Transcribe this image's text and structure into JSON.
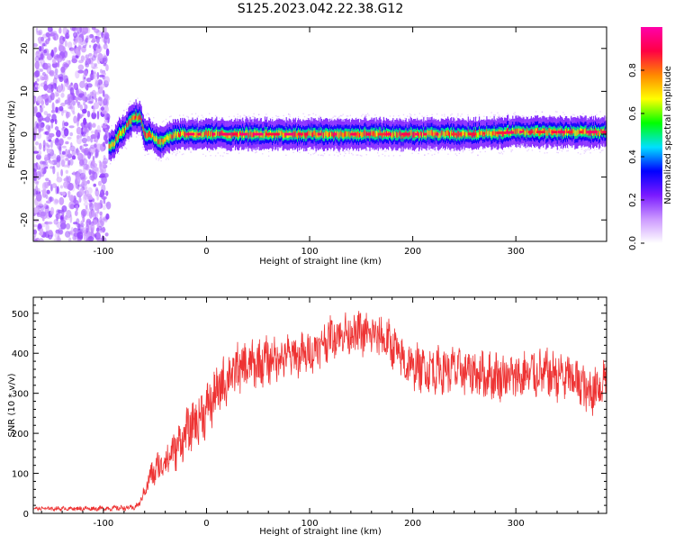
{
  "title": "S125.2023.042.22.38.G12",
  "colors": {
    "snr_line": "#ee3333",
    "axis": "#000000",
    "background": "#ffffff"
  },
  "chart_data": [
    {
      "type": "heatmap",
      "xlabel": "Height of straight line (km)",
      "ylabel": "Frequency (Hz)",
      "xlim": [
        -168,
        388
      ],
      "ylim": [
        -25,
        25
      ],
      "xticks": [
        -100,
        0,
        100,
        200,
        300
      ],
      "yticks": [
        -20,
        -10,
        0,
        10,
        20
      ],
      "grid": false,
      "colorbar": {
        "label": "Normalized spectral amplitude",
        "range": [
          0.0,
          1.0
        ],
        "ticks": [
          0.0,
          0.2,
          0.4,
          0.6,
          0.8
        ],
        "colormap": [
          "#ffffff",
          "#cc99ff",
          "#7a1aff",
          "#0000ff",
          "#00e0ff",
          "#00ff00",
          "#ffff00",
          "#ff8800",
          "#ff0044",
          "#ff00aa"
        ]
      },
      "noise_region_x": [
        -168,
        -95
      ],
      "ridge_center_hz": [
        [
          -95,
          -3
        ],
        [
          -90,
          -2
        ],
        [
          -85,
          0
        ],
        [
          -80,
          1
        ],
        [
          -75,
          3
        ],
        [
          -70,
          4
        ],
        [
          -65,
          4
        ],
        [
          -60,
          0
        ],
        [
          -55,
          0
        ],
        [
          -50,
          -1
        ],
        [
          -45,
          -2
        ],
        [
          -40,
          -1
        ],
        [
          -30,
          0
        ],
        [
          -20,
          0
        ],
        [
          0,
          0
        ],
        [
          100,
          0
        ],
        [
          200,
          0
        ],
        [
          250,
          0
        ],
        [
          300,
          0.5
        ],
        [
          388,
          0.5
        ]
      ],
      "ridge_peak_amplitude": 0.9
    },
    {
      "type": "line",
      "xlabel": "Height of straight line (km)",
      "ylabel": "SNR (10 * v/v)",
      "xlim": [
        -168,
        388
      ],
      "ylim": [
        0,
        540
      ],
      "xticks": [
        -100,
        0,
        100,
        200,
        300
      ],
      "yticks": [
        0,
        100,
        200,
        300,
        400,
        500
      ],
      "grid": false,
      "series": [
        {
          "envelope": [
            [
              -168,
              12
            ],
            [
              -110,
              12
            ],
            [
              -70,
              14
            ],
            [
              -65,
              25
            ],
            [
              -60,
              55
            ],
            [
              -55,
              90
            ],
            [
              -45,
              120
            ],
            [
              -30,
              160
            ],
            [
              -20,
              200
            ],
            [
              -10,
              230
            ],
            [
              0,
              260
            ],
            [
              10,
              300
            ],
            [
              20,
              340
            ],
            [
              30,
              360
            ],
            [
              50,
              375
            ],
            [
              70,
              390
            ],
            [
              90,
              395
            ],
            [
              100,
              400
            ],
            [
              110,
              420
            ],
            [
              120,
              440
            ],
            [
              130,
              450
            ],
            [
              150,
              450
            ],
            [
              170,
              440
            ],
            [
              180,
              420
            ],
            [
              190,
              380
            ],
            [
              200,
              365
            ],
            [
              220,
              360
            ],
            [
              250,
              355
            ],
            [
              270,
              345
            ],
            [
              300,
              340
            ],
            [
              320,
              350
            ],
            [
              340,
              345
            ],
            [
              360,
              330
            ],
            [
              370,
              300
            ],
            [
              380,
              320
            ],
            [
              388,
              340
            ]
          ],
          "noise_amplitude": [
            [
              -168,
              4
            ],
            [
              -65,
              6
            ],
            [
              -50,
              35
            ],
            [
              0,
              60
            ],
            [
              100,
              45
            ],
            [
              200,
              50
            ],
            [
              388,
              55
            ]
          ]
        }
      ]
    }
  ]
}
